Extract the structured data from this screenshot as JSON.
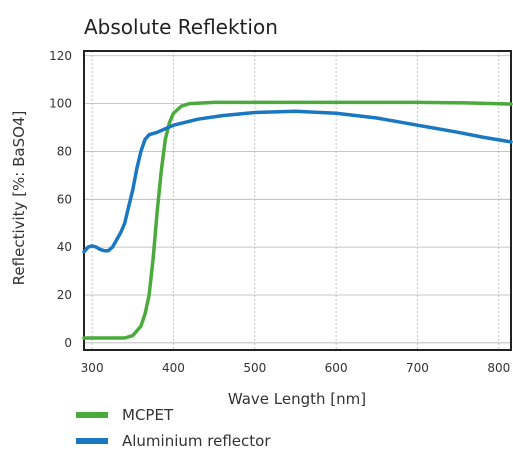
{
  "chart_data": {
    "type": "line",
    "title": "Absolute Reflektion",
    "xlabel": "Wave Length [nm]",
    "ylabel": "Reflectivity [%: BaSO4]",
    "xlim": [
      290,
      815
    ],
    "ylim": [
      -3,
      122
    ],
    "x_ticks": [
      300,
      400,
      500,
      600,
      700,
      800
    ],
    "y_ticks": [
      0,
      20,
      40,
      60,
      80,
      100,
      120
    ],
    "grid": true,
    "legend_position": "bottom-left",
    "series": [
      {
        "name": "MCPET",
        "color": "#4aaa3c",
        "points": [
          [
            290,
            2
          ],
          [
            320,
            2
          ],
          [
            340,
            2
          ],
          [
            350,
            3
          ],
          [
            360,
            7
          ],
          [
            365,
            12
          ],
          [
            370,
            20
          ],
          [
            375,
            35
          ],
          [
            380,
            55
          ],
          [
            385,
            72
          ],
          [
            390,
            85
          ],
          [
            395,
            92
          ],
          [
            400,
            96
          ],
          [
            410,
            99
          ],
          [
            420,
            100
          ],
          [
            450,
            100.5
          ],
          [
            500,
            100.5
          ],
          [
            600,
            100.5
          ],
          [
            700,
            100.5
          ],
          [
            760,
            100.3
          ],
          [
            815,
            99.8
          ]
        ]
      },
      {
        "name": "Aluminium reflector",
        "color": "#1a78c2",
        "points": [
          [
            290,
            38
          ],
          [
            295,
            40
          ],
          [
            300,
            40.5
          ],
          [
            305,
            40
          ],
          [
            310,
            39
          ],
          [
            315,
            38.5
          ],
          [
            320,
            38.5
          ],
          [
            325,
            40
          ],
          [
            330,
            43
          ],
          [
            335,
            46
          ],
          [
            340,
            50
          ],
          [
            345,
            57
          ],
          [
            350,
            64
          ],
          [
            355,
            73
          ],
          [
            360,
            80
          ],
          [
            365,
            85
          ],
          [
            370,
            87
          ],
          [
            380,
            88
          ],
          [
            400,
            91
          ],
          [
            430,
            93.5
          ],
          [
            460,
            95
          ],
          [
            500,
            96.3
          ],
          [
            550,
            96.8
          ],
          [
            600,
            96
          ],
          [
            650,
            94
          ],
          [
            700,
            91
          ],
          [
            750,
            88
          ],
          [
            780,
            86
          ],
          [
            815,
            84
          ]
        ]
      }
    ]
  }
}
